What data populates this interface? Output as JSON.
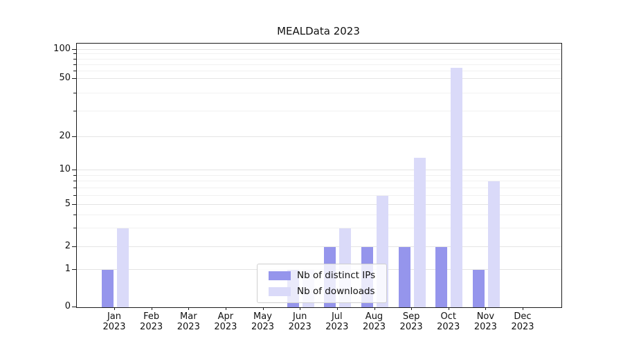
{
  "title": "MEALData 2023",
  "chart_data": {
    "type": "bar",
    "title": "MEALData 2023",
    "scale": "symlog",
    "grid": true,
    "legend_position": "lower center",
    "year_label": "2023",
    "categories": [
      "Jan",
      "Feb",
      "Mar",
      "Apr",
      "May",
      "Jun",
      "Jul",
      "Aug",
      "Sep",
      "Oct",
      "Nov",
      "Dec"
    ],
    "x_tick_labels": [
      "Jan 2023",
      "Feb 2023",
      "Mar 2023",
      "Apr 2023",
      "May 2023",
      "Jun 2023",
      "Jul 2023",
      "Aug 2023",
      "Sep 2023",
      "Oct 2023",
      "Nov 2023",
      "Dec 2023"
    ],
    "y_ticks": [
      0,
      1,
      2,
      5,
      10,
      20,
      50,
      100
    ],
    "y_minor_ticks": [
      3,
      4,
      6,
      7,
      8,
      9,
      30,
      40,
      60,
      70,
      80,
      90
    ],
    "ylim": [
      0,
      100
    ],
    "series": [
      {
        "name": "Nb of distinct IPs",
        "color": "#9595ec",
        "values": [
          1,
          0,
          0,
          0,
          0,
          1,
          2,
          2,
          2,
          2,
          1,
          0
        ]
      },
      {
        "name": "Nb of downloads",
        "color": "#dadaf9",
        "values": [
          3,
          0,
          0,
          0,
          0,
          1,
          3,
          6,
          13,
          65,
          8,
          0
        ]
      }
    ]
  }
}
